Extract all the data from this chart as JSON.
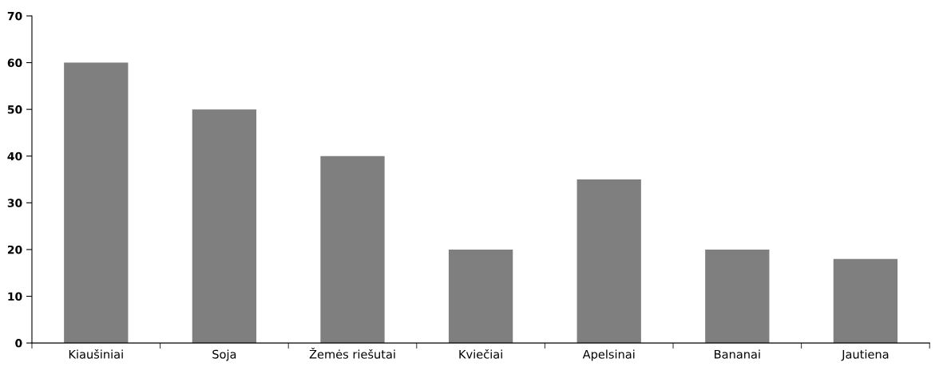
{
  "chart_data": {
    "type": "bar",
    "categories": [
      "Kiaušiniai",
      "Soja",
      "Žemės riešutai",
      "Kviečiai",
      "Apelsinai",
      "Bananai",
      "Jautiena"
    ],
    "values": [
      60,
      50,
      40,
      20,
      35,
      20,
      18
    ],
    "color": "#7f7f7f",
    "ylim": [
      0,
      70
    ],
    "yticks": [
      0,
      10,
      20,
      30,
      40,
      50,
      60,
      70
    ],
    "grid": false,
    "legend": false
  }
}
